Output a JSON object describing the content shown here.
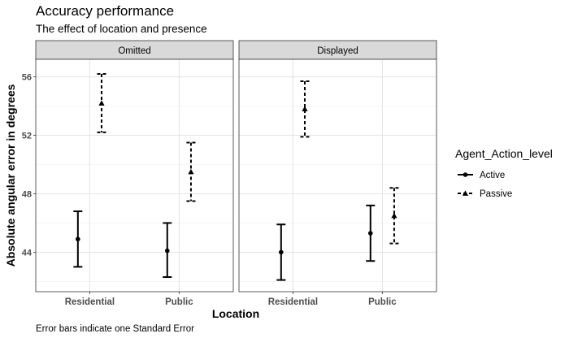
{
  "chart_data": {
    "type": "scatter",
    "title": "Accuracy performance",
    "subtitle": "The effect of location  and presence",
    "xlabel": "Location",
    "ylabel": "Absolute angular error in degrees",
    "caption": "Error bars indicate one Standard Error",
    "categories": [
      "Residential",
      "Public"
    ],
    "ylim": [
      41.3,
      57.2
    ],
    "yticks": [
      44,
      48,
      52,
      56
    ],
    "grid": true,
    "legend": {
      "title": "Agent_Action_level",
      "placement": "right",
      "entries": [
        {
          "label": "Active",
          "marker": "circle",
          "line": "solid"
        },
        {
          "label": "Passive",
          "marker": "triangle",
          "line": "dashed"
        }
      ]
    },
    "panels": [
      {
        "label": "Omitted",
        "series": [
          {
            "name": "Active",
            "values": [
              44.9,
              44.1
            ],
            "lower": [
              43.0,
              42.3
            ],
            "upper": [
              46.8,
              46.0
            ]
          },
          {
            "name": "Passive",
            "values": [
              54.2,
              49.5
            ],
            "lower": [
              52.2,
              47.5
            ],
            "upper": [
              56.2,
              51.5
            ]
          }
        ]
      },
      {
        "label": "Displayed",
        "series": [
          {
            "name": "Active",
            "values": [
              44.0,
              45.3
            ],
            "lower": [
              42.1,
              43.4
            ],
            "upper": [
              45.9,
              47.2
            ]
          },
          {
            "name": "Passive",
            "values": [
              53.8,
              46.5
            ],
            "lower": [
              51.9,
              44.6
            ],
            "upper": [
              55.7,
              48.4
            ]
          }
        ]
      }
    ]
  }
}
